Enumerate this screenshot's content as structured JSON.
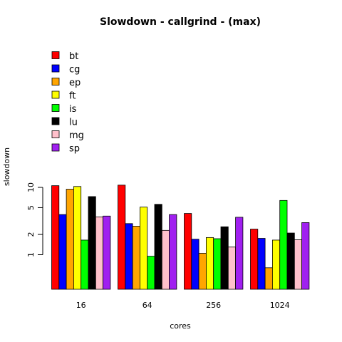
{
  "chart_data": {
    "type": "bar",
    "title": "Slowdown - callgrind - (max)",
    "xlabel": "cores",
    "ylabel": "slowdown",
    "y_scale": "log",
    "ylim": [
      0.6,
      11.5
    ],
    "yticks": [
      1,
      2,
      5,
      10
    ],
    "ytick_labels": [
      "1",
      "2",
      "5",
      "10"
    ],
    "grid": false,
    "legend_position": "top-left (overlapping bars)",
    "categories": [
      "16",
      "64",
      "256",
      "1024"
    ],
    "series": [
      {
        "name": "bt",
        "color": "#ff0000",
        "values": [
          10.6,
          10.8,
          4.1,
          2.4
        ]
      },
      {
        "name": "cg",
        "color": "#0000ff",
        "values": [
          3.95,
          2.9,
          1.7,
          1.75
        ]
      },
      {
        "name": "ep",
        "color": "#ffa500",
        "values": [
          9.4,
          2.65,
          1.05,
          0.64
        ]
      },
      {
        "name": "ft",
        "color": "#ffff00",
        "values": [
          10.3,
          5.1,
          1.8,
          1.65
        ]
      },
      {
        "name": "is",
        "color": "#00ff00",
        "values": [
          1.65,
          0.95,
          1.73,
          6.4
        ]
      },
      {
        "name": "lu",
        "color": "#000000",
        "values": [
          7.3,
          5.6,
          2.6,
          2.1
        ]
      },
      {
        "name": "mg",
        "color": "#ffc0cb",
        "values": [
          3.65,
          2.3,
          1.3,
          1.67
        ]
      },
      {
        "name": "sp",
        "color": "#a020f0",
        "values": [
          3.75,
          3.95,
          3.6,
          3.0
        ]
      }
    ]
  }
}
